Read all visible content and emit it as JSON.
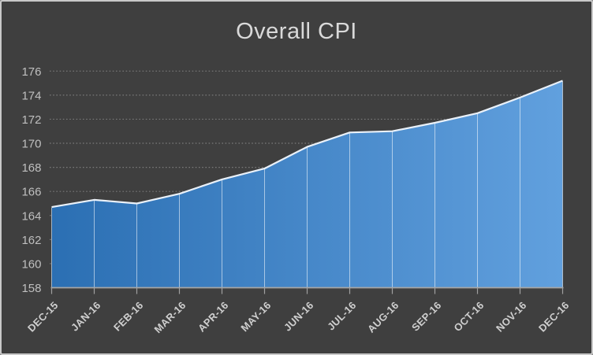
{
  "chart_data": {
    "type": "area",
    "title": "Overall CPI",
    "categories": [
      "DEC-15",
      "JAN-16",
      "FEB-16",
      "MAR-16",
      "APR-16",
      "MAY-16",
      "JUN-16",
      "JUL-16",
      "AUG-16",
      "SEP-16",
      "OCT-16",
      "NOV-16",
      "DEC-16"
    ],
    "values": [
      164.7,
      165.3,
      165.0,
      165.8,
      167.0,
      167.9,
      169.7,
      170.9,
      171.0,
      171.7,
      172.5,
      173.8,
      175.2
    ],
    "xlabel": "",
    "ylabel": "",
    "ylim": [
      158,
      176
    ],
    "yticks": [
      158,
      160,
      162,
      164,
      166,
      168,
      170,
      172,
      174,
      176
    ],
    "grid": "horizontal-dotted",
    "legend": "none",
    "colors": {
      "background": "#3f3f3f",
      "frame_border": "#c9c9c9",
      "title_text": "#d9d9d9",
      "axis_label": "#bfbfbf",
      "x_axis_label": "#cfcfcf",
      "gridline": "#7a7a7a",
      "axis_line": "#a6a6a6",
      "tick_mark": "#a0a0a0",
      "area_gradient_left": "#2b6fb3",
      "area_gradient_right": "#61a0de",
      "series_line": "#eaf1f9",
      "divider_line": "#ffffff"
    }
  }
}
